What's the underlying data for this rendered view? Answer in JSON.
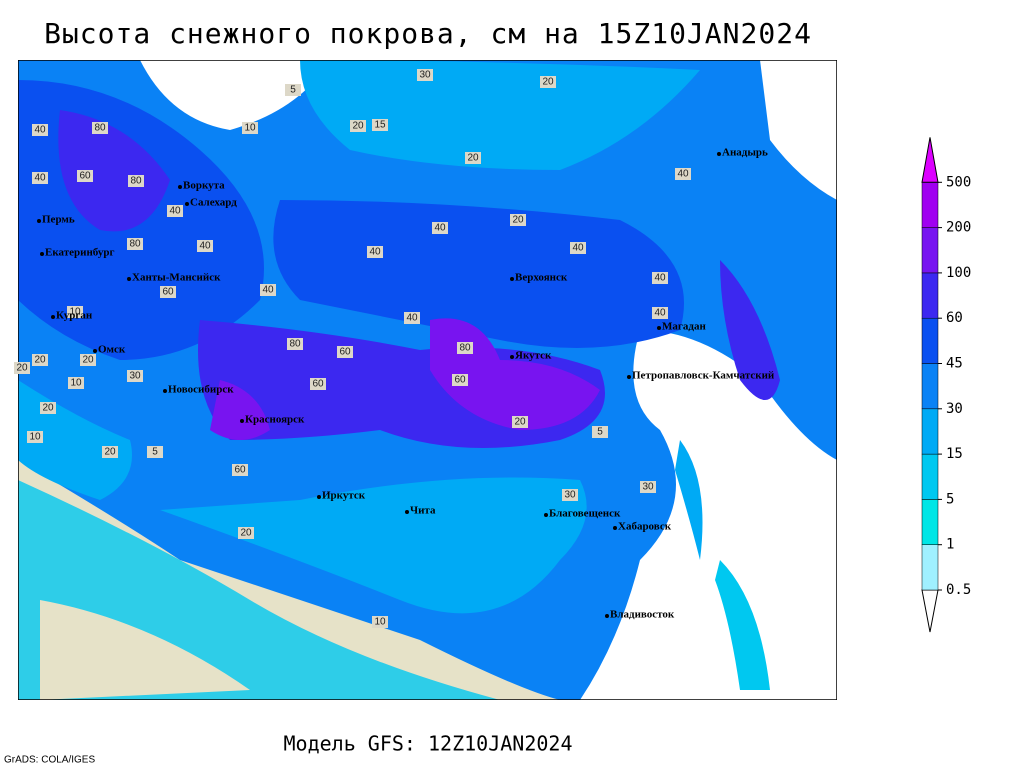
{
  "header": {
    "title": "Высота снежного покрова, см на 15Z10JAN2024"
  },
  "footer": {
    "model": "Модель GFS: 12Z10JAN2024",
    "credit": "GrADS: COLA/IGES"
  },
  "colorbar": {
    "levels": [
      0.5,
      1,
      5,
      15,
      30,
      45,
      60,
      100,
      200,
      500
    ],
    "colors": [
      "#ffffff",
      "#a0f0ff",
      "#00e6e6",
      "#00c8f0",
      "#00aaf5",
      "#0a82f5",
      "#0a50f0",
      "#3c28f0",
      "#7814f0",
      "#a000f0",
      "#dc00ff"
    ]
  },
  "cities": [
    "Воркута",
    "Салехард",
    "Пермь",
    "Екатеринбург",
    "Ханты-Мансийск",
    "Курган",
    "Омск",
    "Новосибирск",
    "Красноярск",
    "Иркутск",
    "Чита",
    "Верхоянск",
    "Якутск",
    "Магадан",
    "Анадырь",
    "Петропавловск-Камчатский",
    "Благовещенск",
    "Хабаровск",
    "Владивосток"
  ],
  "contour_labels": [
    30,
    20,
    10,
    20,
    5,
    15,
    20,
    40,
    80,
    40,
    60,
    80,
    40,
    20,
    40,
    40,
    40,
    40,
    80,
    60,
    40,
    10,
    20,
    40,
    80,
    60,
    80,
    40,
    60,
    30,
    20,
    20,
    5,
    20,
    20,
    10,
    10,
    5,
    20,
    30,
    30,
    40,
    40,
    60,
    20,
    60,
    10
  ]
}
